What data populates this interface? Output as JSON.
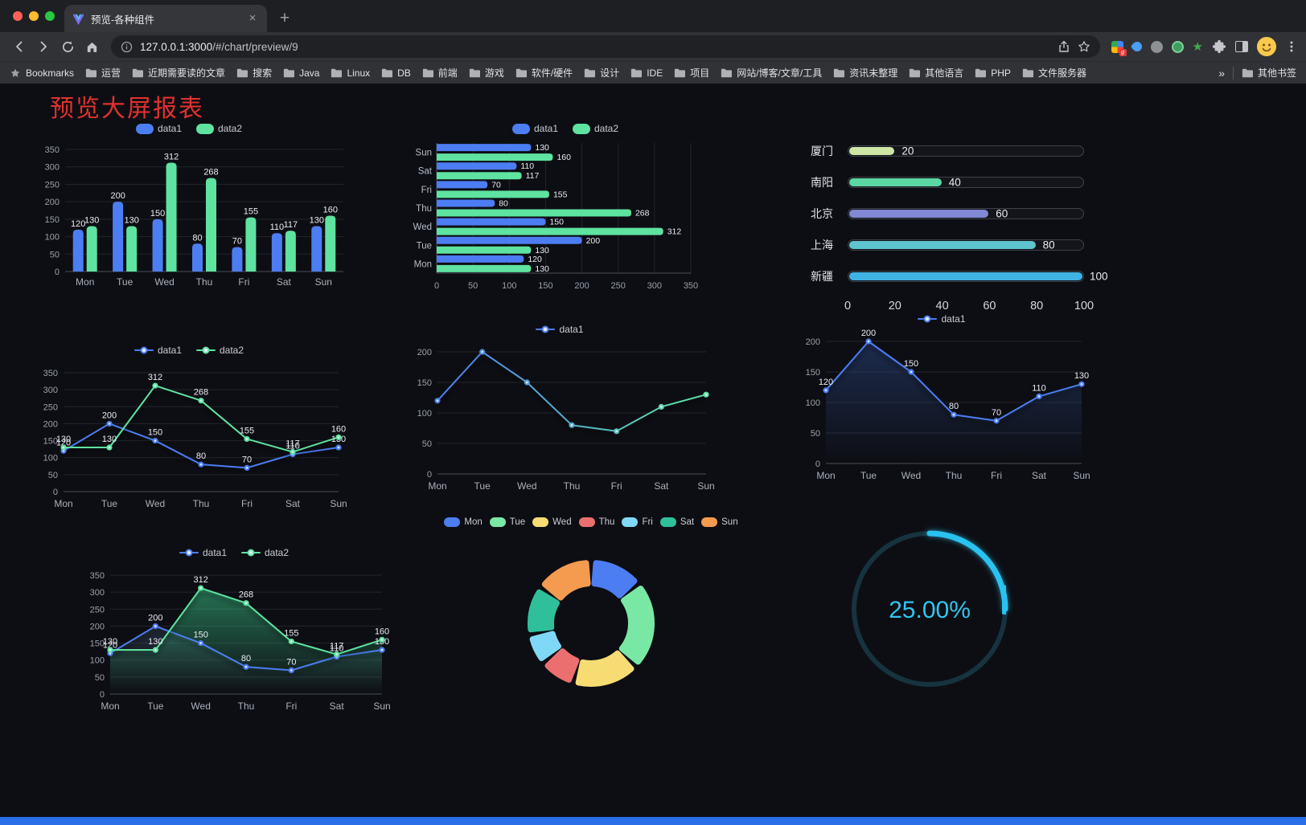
{
  "browser": {
    "tab_title": "预览-各种组件",
    "new_tab_plus": "+",
    "close_glyph": "×",
    "url_host": "127.0.0.1:3000",
    "url_path": "/#/chart/preview/9",
    "bookmarks_label": "Bookmarks",
    "bookmarks": [
      "运营",
      "近期需要读的文章",
      "搜索",
      "Java",
      "Linux",
      "DB",
      "前端",
      "游戏",
      "软件/硬件",
      "设计",
      "IDE",
      "项目",
      "网站/博客/文章/工具",
      "资讯未整理",
      "其他语言",
      "PHP",
      "文件服务器"
    ],
    "overflow_chevron": "»",
    "other_bookmarks_label": "其他书签"
  },
  "page": {
    "title": "预览大屏报表",
    "title_color": "#e0312e",
    "background": "#0d0e13",
    "footer_color": "#2b6fe8"
  },
  "chart_data": [
    {
      "id": "grouped-bar",
      "type": "bar",
      "categories": [
        "Mon",
        "Tue",
        "Wed",
        "Thu",
        "Fri",
        "Sat",
        "Sun"
      ],
      "series": [
        {
          "name": "data1",
          "color": "#4c7df2",
          "values": [
            120,
            200,
            150,
            80,
            70,
            110,
            130
          ]
        },
        {
          "name": "data2",
          "color": "#5ee3a0",
          "values": [
            130,
            130,
            312,
            268,
            155,
            117,
            160
          ]
        }
      ],
      "ylim": [
        0,
        350
      ],
      "yticks": [
        0,
        50,
        100,
        150,
        200,
        250,
        300,
        350
      ],
      "show_labels": true,
      "legend_position": "top"
    },
    {
      "id": "horizontal-bar",
      "type": "hbar",
      "categories": [
        "Mon",
        "Tue",
        "Wed",
        "Thu",
        "Fri",
        "Sat",
        "Sun"
      ],
      "series": [
        {
          "name": "data1",
          "color": "#4c7df2",
          "values": [
            120,
            200,
            150,
            80,
            70,
            110,
            130
          ]
        },
        {
          "name": "data2",
          "color": "#5ee3a0",
          "values": [
            130,
            130,
            312,
            268,
            155,
            117,
            160
          ]
        }
      ],
      "xlim": [
        0,
        350
      ],
      "xticks": [
        0,
        50,
        100,
        150,
        200,
        250,
        300,
        350
      ],
      "show_labels": true,
      "legend_position": "top"
    },
    {
      "id": "capsule-progress",
      "type": "capsule",
      "rows": [
        {
          "label": "厦门",
          "value": 20,
          "color": "#cde6a5"
        },
        {
          "label": "南阳",
          "value": 40,
          "color": "#5bd7a4"
        },
        {
          "label": "北京",
          "value": 60,
          "color": "#8188d6"
        },
        {
          "label": "上海",
          "value": 80,
          "color": "#5ec4cd"
        },
        {
          "label": "新疆",
          "value": 100,
          "color": "#3fb2e4"
        }
      ],
      "xlim": [
        0,
        100
      ],
      "xticks": [
        0,
        20,
        40,
        60,
        80,
        100
      ]
    },
    {
      "id": "multi-line",
      "type": "line",
      "categories": [
        "Mon",
        "Tue",
        "Wed",
        "Thu",
        "Fri",
        "Sat",
        "Sun"
      ],
      "series": [
        {
          "name": "data1",
          "color": "#4c7df2",
          "values": [
            120,
            200,
            150,
            80,
            70,
            110,
            130
          ],
          "labels": true
        },
        {
          "name": "data2",
          "color": "#5ee3a0",
          "values": [
            130,
            130,
            312,
            268,
            155,
            117,
            160
          ],
          "labels": true
        }
      ],
      "ylim": [
        0,
        350
      ],
      "yticks": [
        0,
        50,
        100,
        150,
        200,
        250,
        300,
        350
      ],
      "legend_position": "top"
    },
    {
      "id": "gradient-line",
      "type": "line",
      "categories": [
        "Mon",
        "Tue",
        "Wed",
        "Thu",
        "Fri",
        "Sat",
        "Sun"
      ],
      "series": [
        {
          "name": "data1",
          "color": "#4c7df2",
          "color_end": "#5ee3a0",
          "values": [
            120,
            200,
            150,
            80,
            70,
            110,
            130
          ],
          "labels": false
        }
      ],
      "ylim": [
        0,
        200
      ],
      "yticks": [
        0,
        50,
        100,
        150,
        200
      ],
      "shadow": true,
      "legend_position": "top"
    },
    {
      "id": "area-line-single",
      "type": "line",
      "categories": [
        "Mon",
        "Tue",
        "Wed",
        "Thu",
        "Fri",
        "Sat",
        "Sun"
      ],
      "series": [
        {
          "name": "data1",
          "color": "#4c7df2",
          "values": [
            120,
            200,
            150,
            80,
            70,
            110,
            130
          ],
          "labels": true,
          "area": "#2c4a8a",
          "area_opacity": 0.5
        }
      ],
      "ylim": [
        0,
        200
      ],
      "yticks": [
        0,
        50,
        100,
        150,
        200
      ],
      "shadow": true,
      "legend_position": "top"
    },
    {
      "id": "area-line-multi",
      "type": "line",
      "categories": [
        "Mon",
        "Tue",
        "Wed",
        "Thu",
        "Fri",
        "Sat",
        "Sun"
      ],
      "series": [
        {
          "name": "data1",
          "color": "#4c7df2",
          "values": [
            120,
            200,
            150,
            80,
            70,
            110,
            130
          ],
          "labels": true,
          "area": "#3a4f63",
          "area_opacity": 0.45
        },
        {
          "name": "data2",
          "color": "#5ee3a0",
          "values": [
            130,
            130,
            312,
            268,
            155,
            117,
            160
          ],
          "labels": true,
          "area": "#3fd695",
          "area_opacity": 0.5
        }
      ],
      "ylim": [
        0,
        350
      ],
      "yticks": [
        0,
        50,
        100,
        150,
        200,
        250,
        300,
        350
      ],
      "legend_position": "top"
    },
    {
      "id": "donut",
      "type": "donut",
      "categories": [
        "Mon",
        "Tue",
        "Wed",
        "Thu",
        "Fri",
        "Sat",
        "Sun"
      ],
      "values": [
        120,
        200,
        150,
        80,
        70,
        110,
        130
      ],
      "colors": [
        "#4c7df2",
        "#79e8a5",
        "#f7dc74",
        "#ec6f6f",
        "#7fd8f5",
        "#2fbf9b",
        "#f59b4f"
      ],
      "legend_position": "top"
    },
    {
      "id": "ring-progress",
      "type": "gauge",
      "percent": 25,
      "value_label": "25.00%",
      "color": "#2cc2ef",
      "track_color": "#16333f"
    }
  ]
}
